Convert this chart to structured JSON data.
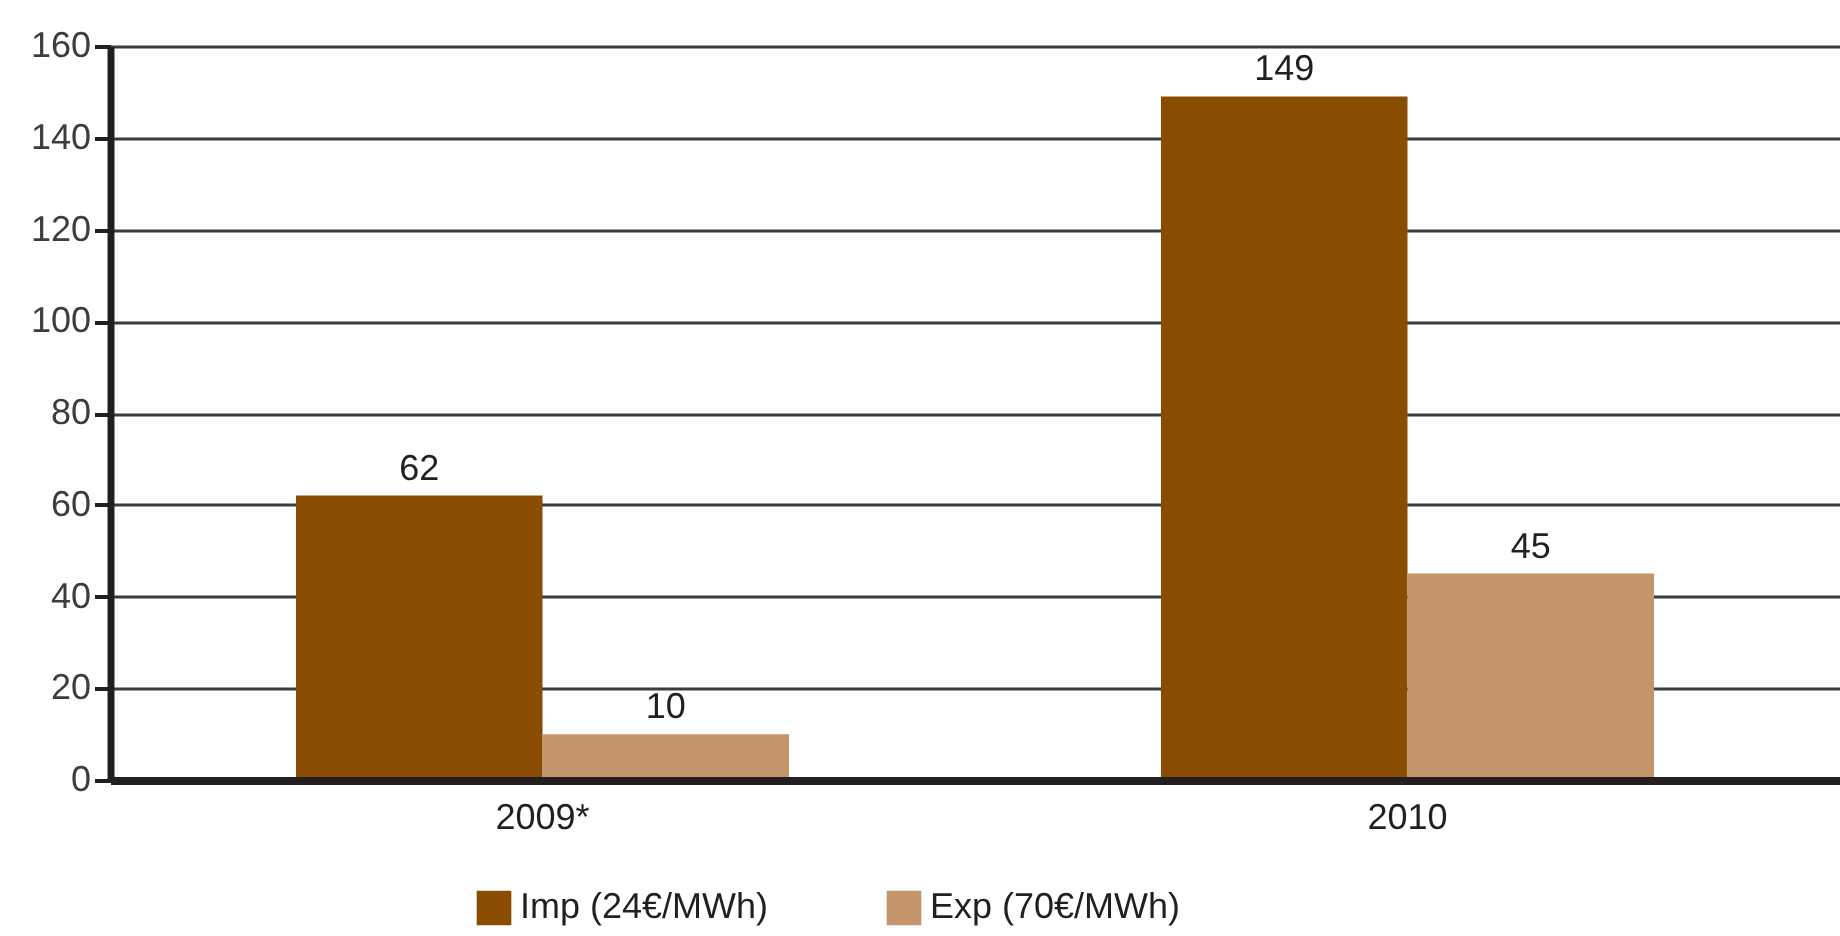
{
  "chart_data": {
    "type": "bar",
    "categories": [
      "2009*",
      "2010"
    ],
    "series": [
      {
        "name": "Imp (24€/MWh)",
        "color": "#8a4c00",
        "values": [
          62,
          149
        ]
      },
      {
        "name": "Exp (70€/MWh)",
        "color": "#c2966a",
        "values": [
          10,
          45
        ]
      }
    ],
    "ylim": [
      0,
      160
    ],
    "yticks": [
      0,
      20,
      40,
      60,
      80,
      100,
      120,
      140,
      160
    ],
    "grid": "y",
    "legend": "bottom",
    "data_labels": true
  }
}
